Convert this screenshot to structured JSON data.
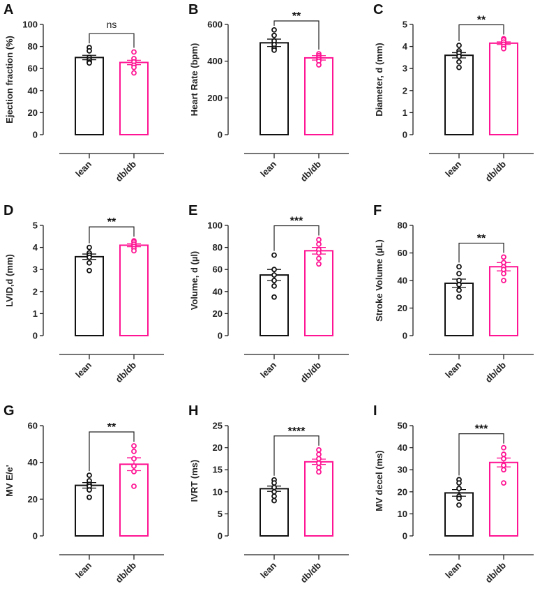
{
  "colors": {
    "lean": "#111111",
    "dbdb": "#ff1493"
  },
  "chart_data": [
    {
      "panel": "A",
      "type": "bar",
      "ylabel": "Ejection fraction (%)",
      "ylim": [
        0,
        100
      ],
      "yticks": [
        0,
        20,
        40,
        60,
        80,
        100
      ],
      "categories": [
        "lean",
        "db/db"
      ],
      "values": [
        70,
        65.5
      ],
      "sem": [
        2,
        2
      ],
      "points": [
        [
          79,
          76,
          70,
          68,
          66,
          65
        ],
        [
          75,
          69,
          66,
          63,
          61,
          56
        ]
      ],
      "significance": "ns"
    },
    {
      "panel": "B",
      "type": "bar",
      "ylabel": "Heart Rate (bpm)",
      "ylim": [
        0,
        600
      ],
      "yticks": [
        0,
        200,
        400,
        600
      ],
      "categories": [
        "lean",
        "db/db"
      ],
      "values": [
        500,
        418
      ],
      "sem": [
        20,
        12
      ],
      "points": [
        [
          570,
          540,
          510,
          490,
          470,
          460
        ],
        [
          440,
          430,
          420,
          410,
          400,
          380
        ]
      ],
      "significance": "**"
    },
    {
      "panel": "C",
      "type": "bar",
      "ylabel": "Diameter, d (mm)",
      "ylim": [
        0,
        5
      ],
      "yticks": [
        0,
        1,
        2,
        3,
        4,
        5
      ],
      "categories": [
        "lean",
        "db/db"
      ],
      "values": [
        3.6,
        4.15
      ],
      "sem": [
        0.12,
        0.06
      ],
      "points": [
        [
          4.05,
          3.8,
          3.7,
          3.55,
          3.3,
          3.05
        ],
        [
          4.35,
          4.3,
          4.2,
          4.1,
          4.0,
          3.9
        ]
      ],
      "significance": "**"
    },
    {
      "panel": "D",
      "type": "bar",
      "ylabel": "LVID,d (mm)",
      "ylim": [
        0,
        5
      ],
      "yticks": [
        0,
        1,
        2,
        3,
        4,
        5
      ],
      "categories": [
        "lean",
        "db/db"
      ],
      "values": [
        3.58,
        4.1
      ],
      "sem": [
        0.12,
        0.07
      ],
      "points": [
        [
          4.0,
          3.75,
          3.65,
          3.55,
          3.3,
          2.95
        ],
        [
          4.3,
          4.25,
          4.15,
          4.05,
          3.95,
          3.85
        ]
      ],
      "significance": "**"
    },
    {
      "panel": "E",
      "type": "bar",
      "ylabel": "Volume, d (µl)",
      "ylim": [
        0,
        100
      ],
      "yticks": [
        0,
        20,
        40,
        60,
        80,
        100
      ],
      "categories": [
        "lean",
        "db/db"
      ],
      "values": [
        55,
        77
      ],
      "sem": [
        5,
        3
      ],
      "points": [
        [
          73,
          60,
          55,
          50,
          45,
          35
        ],
        [
          87,
          83,
          78,
          75,
          70,
          65
        ]
      ],
      "significance": "***"
    },
    {
      "panel": "F",
      "type": "bar",
      "ylabel": "Stroke Volume (µL)",
      "ylim": [
        0,
        80
      ],
      "yticks": [
        0,
        20,
        40,
        60,
        80
      ],
      "categories": [
        "lean",
        "db/db"
      ],
      "values": [
        38,
        50
      ],
      "sem": [
        3,
        3
      ],
      "points": [
        [
          50,
          45,
          40,
          37,
          33,
          28
        ],
        [
          57,
          53,
          50,
          48,
          45,
          40
        ]
      ],
      "significance": "**"
    },
    {
      "panel": "G",
      "type": "bar",
      "ylabel": "MV E/e'",
      "ylim": [
        0,
        60
      ],
      "yticks": [
        0,
        20,
        40,
        60
      ],
      "categories": [
        "lean",
        "db/db"
      ],
      "values": [
        27.5,
        39
      ],
      "sem": [
        1.5,
        3.5
      ],
      "points": [
        [
          33,
          30,
          28,
          27,
          25,
          21
        ],
        [
          49,
          46,
          42,
          38,
          35,
          27
        ]
      ],
      "significance": "**"
    },
    {
      "panel": "H",
      "type": "bar",
      "ylabel": "IVRT (ms)",
      "ylim": [
        0,
        25
      ],
      "yticks": [
        0,
        5,
        10,
        15,
        20,
        25
      ],
      "categories": [
        "lean",
        "db/db"
      ],
      "values": [
        10.7,
        16.8
      ],
      "sem": [
        0.6,
        0.6
      ],
      "points": [
        [
          12.7,
          12,
          11,
          10,
          9,
          8
        ],
        [
          19.5,
          18.5,
          17.5,
          16.5,
          15.5,
          14.5
        ]
      ],
      "significance": "****"
    },
    {
      "panel": "I",
      "type": "bar",
      "ylabel": "MV decel (ms)",
      "ylim": [
        0,
        50
      ],
      "yticks": [
        0,
        10,
        20,
        30,
        40,
        50
      ],
      "categories": [
        "lean",
        "db/db"
      ],
      "values": [
        19.5,
        33.3
      ],
      "sem": [
        1.5,
        2
      ],
      "points": [
        [
          25.5,
          24,
          21.5,
          18,
          17,
          14
        ],
        [
          40,
          37,
          35,
          32,
          30,
          24
        ]
      ],
      "significance": "***"
    }
  ]
}
